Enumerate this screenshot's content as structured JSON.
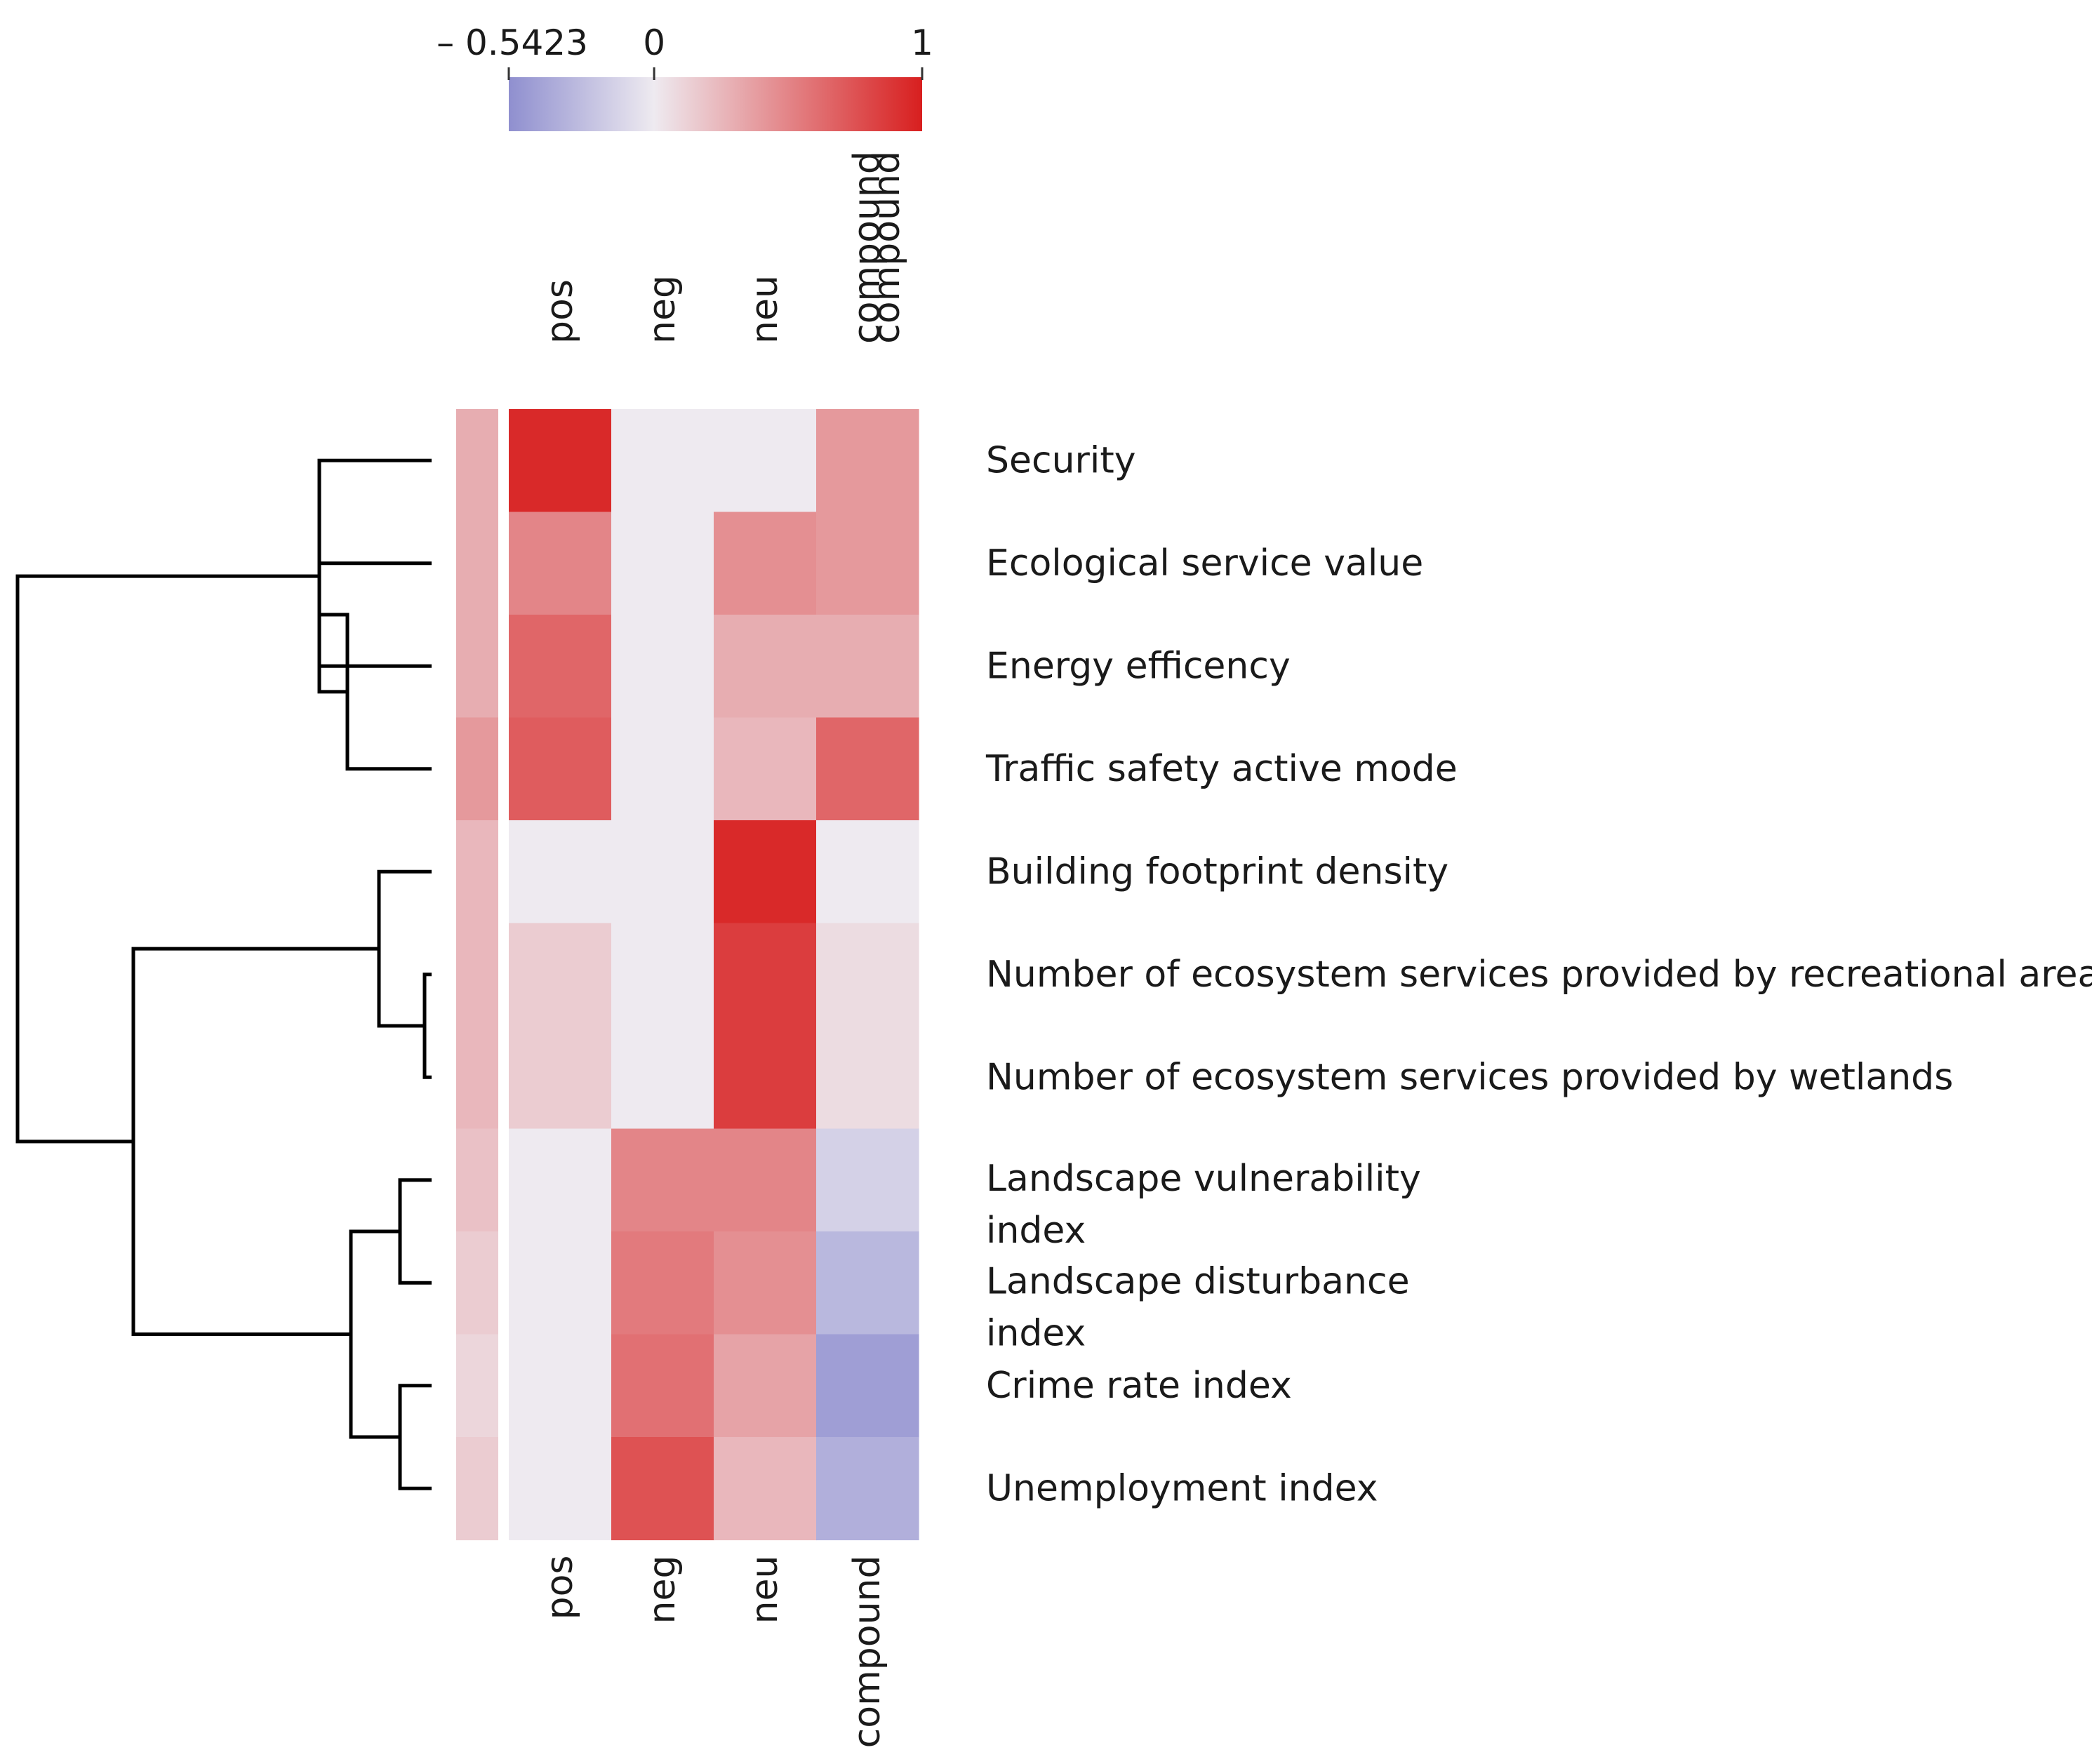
{
  "chart_data": {
    "type": "heatmap",
    "title": "",
    "clustered": true,
    "columns": [
      "pos",
      "neg",
      "neu",
      "compound"
    ],
    "rows": [
      {
        "label": "Security",
        "wrapped": [
          "Security"
        ],
        "values": [
          0.95,
          0.0,
          0.0,
          0.4
        ],
        "annotation": 0.3
      },
      {
        "label": "Ecological service value",
        "wrapped": [
          "Ecological service value"
        ],
        "values": [
          0.5,
          0.0,
          0.45,
          0.4
        ],
        "annotation": 0.3
      },
      {
        "label": "Energy efficency",
        "wrapped": [
          "Energy efficency"
        ],
        "values": [
          0.65,
          0.0,
          0.3,
          0.3
        ],
        "annotation": 0.3
      },
      {
        "label": "Traffic safety active mode",
        "wrapped": [
          "Traffic safety active mode"
        ],
        "values": [
          0.7,
          0.0,
          0.25,
          0.65
        ],
        "annotation": 0.4
      },
      {
        "label": "Building footprint density",
        "wrapped": [
          "Building footprint density"
        ],
        "values": [
          0.0,
          0.0,
          0.95,
          0.0
        ],
        "annotation": 0.25
      },
      {
        "label": "Number of ecosystem services provided by recreational area",
        "wrapped": [
          "Number of ecosystem services provided by recreational area"
        ],
        "values": [
          0.15,
          0.0,
          0.85,
          0.07
        ],
        "annotation": 0.25
      },
      {
        "label": "Number of ecosystem services provided by wetlands",
        "wrapped": [
          "Number of ecosystem services provided by wetlands"
        ],
        "values": [
          0.15,
          0.0,
          0.85,
          0.07
        ],
        "annotation": 0.25
      },
      {
        "label": "Landscape vulnerability index",
        "wrapped": [
          "Landscape vulnerability",
          "index"
        ],
        "values": [
          0.0,
          0.5,
          0.5,
          -0.15
        ],
        "annotation": 0.2
      },
      {
        "label": "Landscape disturbance index",
        "wrapped": [
          "Landscape disturbance",
          "index"
        ],
        "values": [
          0.0,
          0.55,
          0.45,
          -0.3
        ],
        "annotation": 0.15
      },
      {
        "label": "Crime rate index",
        "wrapped": [
          "Crime rate index"
        ],
        "values": [
          0.0,
          0.6,
          0.35,
          -0.45
        ],
        "annotation": 0.1
      },
      {
        "label": "Unemployment index",
        "wrapped": [
          "Unemployment index"
        ],
        "values": [
          0.0,
          0.75,
          0.25,
          -0.35
        ],
        "annotation": 0.15
      }
    ],
    "colorbar": {
      "min": -0.5423,
      "max": 1,
      "ticks": [
        {
          "value": -0.5423,
          "label": "– 0.5423"
        },
        {
          "value": 0,
          "label": "0"
        },
        {
          "value": 1,
          "label": "1"
        }
      ],
      "colors": {
        "min": "#8f8fcf",
        "zero": "#eeeaf0",
        "max": "#d81f1f"
      },
      "label": "compound"
    },
    "dendrogram": {
      "orientation": "left",
      "merges": [
        {
          "children": [
            1,
            2
          ]
        },
        {
          "children": [
            "m0",
            3
          ]
        },
        {
          "children": [
            0,
            "m1"
          ]
        },
        {
          "children": [
            5,
            6
          ]
        },
        {
          "children": [
            4,
            "m3"
          ]
        },
        {
          "children": [
            7,
            8
          ]
        },
        {
          "children": [
            9,
            10
          ]
        },
        {
          "children": [
            "m5",
            "m6"
          ]
        },
        {
          "children": [
            "m4",
            "m7"
          ]
        },
        {
          "children": [
            "m2",
            "m8"
          ]
        }
      ]
    }
  }
}
